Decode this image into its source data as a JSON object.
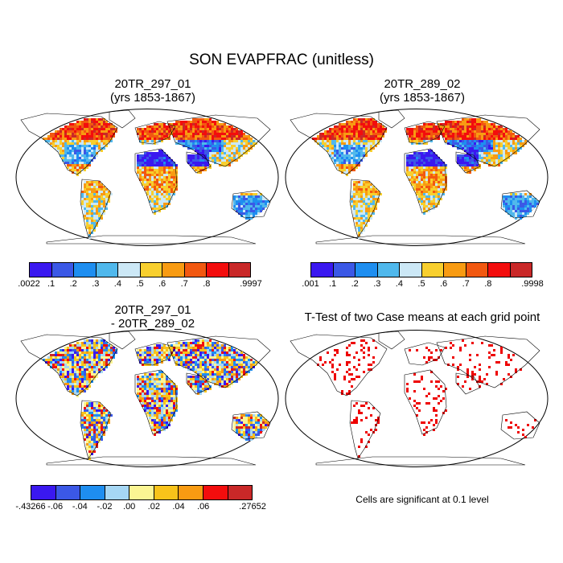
{
  "main_title": "SON EVAPFRAC (unitless)",
  "panels": [
    {
      "title_line1": "20TR_297_01",
      "title_line2": "(yrs 1853-1867)",
      "colors": [
        "#3a18f0",
        "#3b58e6",
        "#1e8ef0",
        "#50b8ec",
        "#cce8f6",
        "#f8cf2e",
        "#f89b12",
        "#f25810",
        "#f30d0d",
        "#c92828"
      ],
      "labels": [
        ".0022",
        ".1",
        ".2",
        ".3",
        ".4",
        ".5",
        ".6",
        ".7",
        ".8",
        ".9997"
      ]
    },
    {
      "title_line1": "20TR_289_02",
      "title_line2": "(yrs 1853-1867)",
      "colors": [
        "#3a18f0",
        "#3b58e6",
        "#1e8ef0",
        "#50b8ec",
        "#cce8f6",
        "#f8cf2e",
        "#f89b12",
        "#f25810",
        "#f30d0d",
        "#c92828"
      ],
      "labels": [
        ".001",
        ".1",
        ".2",
        ".3",
        ".4",
        ".5",
        ".6",
        ".7",
        ".8",
        ".9998"
      ]
    },
    {
      "title_line1": "20TR_297_01",
      "title_line2": "- 20TR_289_02",
      "colors": [
        "#3a18f0",
        "#3b58e6",
        "#1e8ef0",
        "#a6d7f4",
        "#fbf593",
        "#f8c31a",
        "#f89b12",
        "#f30d0d",
        "#c92828"
      ],
      "labels": [
        "-.43266",
        "-.06",
        "-.04",
        "-.02",
        ".00",
        ".02",
        ".04",
        ".06",
        ".27652"
      ]
    },
    {
      "title_line1": "T-Test of two Case means at each grid point",
      "note": "Cells are significant at 0.1 level",
      "significance_color": "#ee0000"
    }
  ]
}
